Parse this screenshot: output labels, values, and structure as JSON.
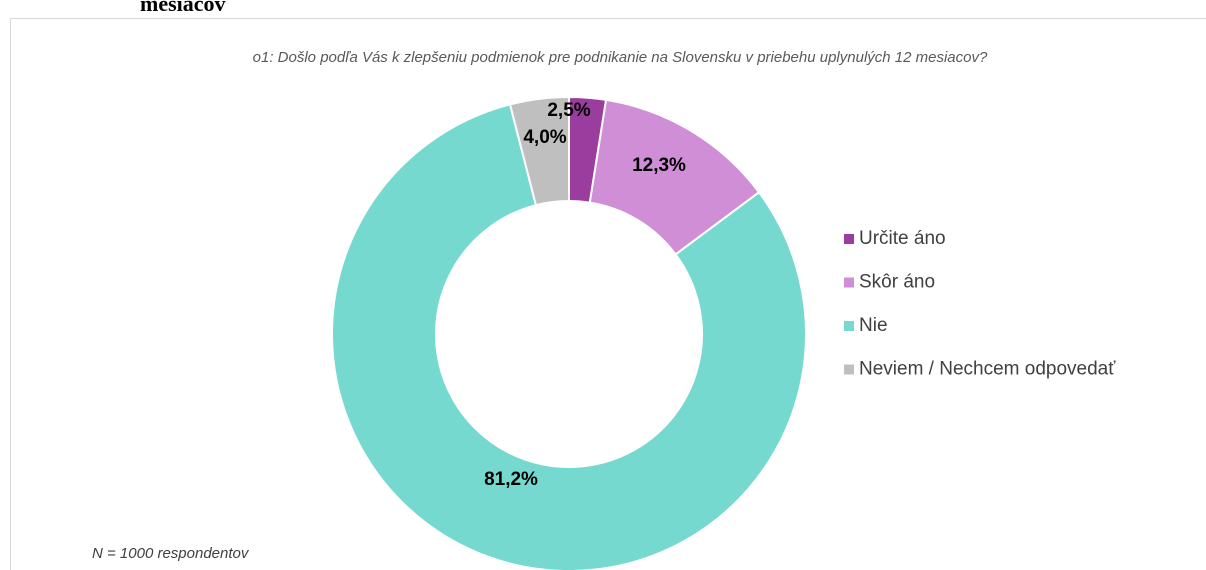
{
  "heading": "mesiacov",
  "chart_data": {
    "type": "donut",
    "title": "o1: Došlo podľa Vás k zlepšeniu podmienok pre podnikanie na Slovensku v priebehu uplynulých 12 mesiacov?",
    "categories": [
      "Určite áno",
      "Skôr áno",
      "Nie",
      "Neviem / Nechcem odpovedať"
    ],
    "values": [
      2.5,
      12.3,
      81.2,
      4.0
    ],
    "value_labels": [
      "2,5%",
      "12,3%",
      "81,2%",
      "4,0%"
    ],
    "colors": [
      "#9a3d9f",
      "#cf8ed6",
      "#76d9cf",
      "#bfbfbf"
    ],
    "legend": "right",
    "note": "N = 1000 respondentov"
  }
}
